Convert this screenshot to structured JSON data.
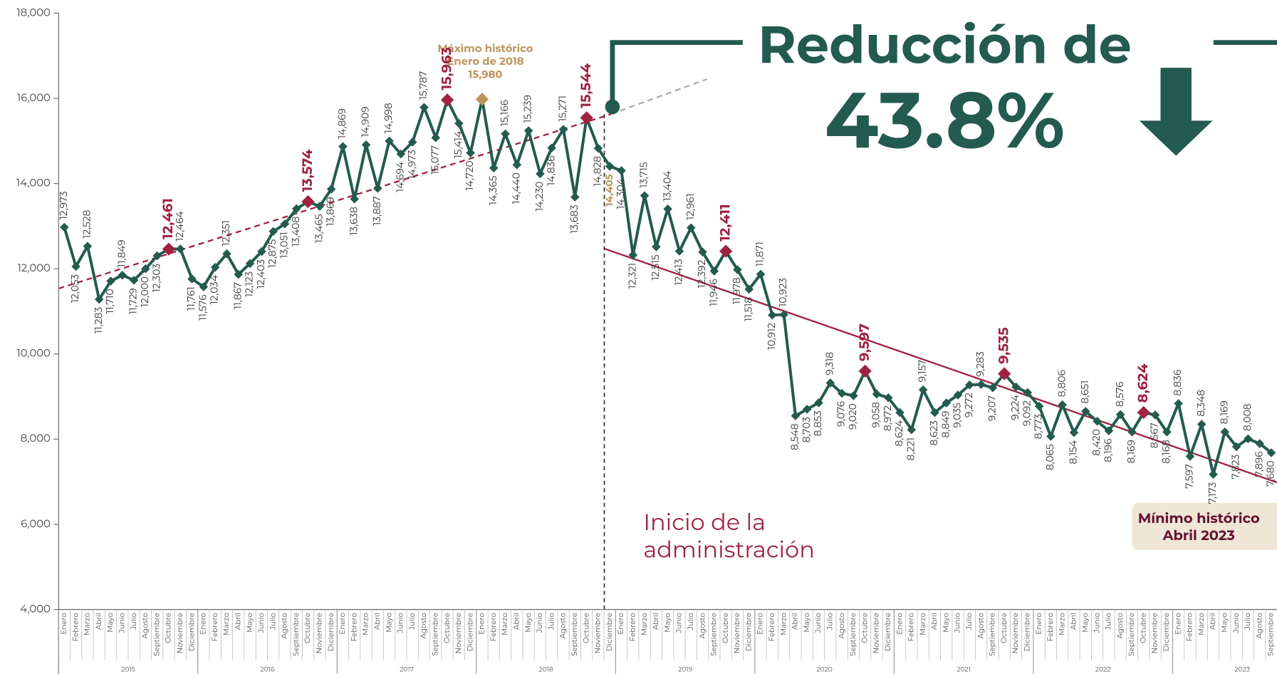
{
  "chart_data": {
    "type": "line",
    "categories": [
      "Enero",
      "Febrero",
      "Marzo",
      "Abril",
      "Mayo",
      "Junio",
      "Julio",
      "Agosto",
      "Septiembre",
      "Octubre",
      "Noviembre",
      "Diciembre",
      "Enero",
      "Febrero",
      "Marzo",
      "Abril",
      "Mayo",
      "Junio",
      "Julio",
      "Agosto",
      "Septiembre",
      "Octubre",
      "Noviembre",
      "Diciembre",
      "Enero",
      "Febrero",
      "Marzo",
      "Abril",
      "Mayo",
      "Junio",
      "Julio",
      "Agosto",
      "Septiembre",
      "Octubre",
      "Noviembre",
      "Diciembre",
      "Enero",
      "Febrero",
      "Marzo",
      "Abril",
      "Mayo",
      "Junio",
      "Julio",
      "Agosto",
      "Septiembre",
      "Octubre",
      "Noviembre",
      "Diciembre",
      "Enero",
      "Febrero",
      "Marzo",
      "Abril",
      "Mayo",
      "Junio",
      "Julio",
      "Agosto",
      "Septiembre",
      "Octubre",
      "Noviembre",
      "Diciembre",
      "Enero",
      "Febrero",
      "Marzo",
      "Abril",
      "Mayo",
      "Junio",
      "Julio",
      "Agosto",
      "Septiembre",
      "Octubre",
      "Noviembre",
      "Diciembre",
      "Enero",
      "Febrero",
      "Marzo",
      "Abril",
      "Mayo",
      "Junio",
      "Julio",
      "Agosto",
      "Septiembre",
      "Octubre",
      "Noviembre",
      "Diciembre",
      "Enero",
      "Febrero",
      "Marzo",
      "Abril",
      "Mayo",
      "Junio",
      "Julio",
      "Agosto",
      "Septiembre",
      "Octubre",
      "Noviembre",
      "Diciembre",
      "Enero",
      "Febrero",
      "Marzo",
      "Abril",
      "Mayo",
      "Junio",
      "Julio",
      "Agosto",
      "Septiembre"
    ],
    "years": [
      "2015",
      "2016",
      "2017",
      "2018",
      "2019",
      "2020",
      "2021",
      "2022",
      "2023"
    ],
    "values": [
      12973,
      12053,
      12528,
      11283,
      11710,
      11849,
      11729,
      12000,
      12303,
      12461,
      12464,
      11761,
      11576,
      12034,
      12351,
      11867,
      12123,
      12403,
      12875,
      13051,
      13408,
      13574,
      13465,
      13869,
      14869,
      13638,
      14909,
      13887,
      14998,
      14694,
      14973,
      15787,
      15077,
      15963,
      15414,
      14720,
      15980,
      14365,
      15166,
      14440,
      15239,
      14230,
      14836,
      15271,
      13683,
      15544,
      14828,
      14405,
      14304,
      12321,
      13715,
      12515,
      13404,
      12413,
      12961,
      12392,
      11946,
      12411,
      11978,
      11518,
      11871,
      10912,
      10923,
      8548,
      8703,
      8853,
      9318,
      9076,
      9020,
      9597,
      9058,
      8972,
      8624,
      8221,
      9157,
      8623,
      8849,
      9035,
      9272,
      9283,
      9207,
      9535,
      9224,
      9092,
      8773,
      8065,
      8806,
      8154,
      8651,
      8420,
      8196,
      8576,
      8169,
      8624,
      8567,
      8168,
      8836,
      7597,
      8348,
      7173,
      8169,
      7823,
      8008,
      7896,
      7680
    ],
    "value_labels": [
      "12,973",
      "12,053",
      "12,528",
      "11,283",
      "11,710",
      "11,849",
      "11,729",
      "12,000",
      "12,303",
      "12,461",
      "12,464",
      "11,761",
      "11,576",
      "12,034",
      "12,351",
      "11,867",
      "12,123",
      "12,403",
      "12,875",
      "13,051",
      "13,408",
      "13,574",
      "13,465",
      "13,869",
      "14,869",
      "13,638",
      "14,909",
      "13,887",
      "14,998",
      "14,694",
      "14,973",
      "15,787",
      "15,077",
      "15,963",
      "15,414",
      "14,720",
      "15,980",
      "14,365",
      "15,166",
      "14,440",
      "15,239",
      "14,230",
      "14,836",
      "15,271",
      "13,683",
      "15,544",
      "14,828",
      "14,405",
      "14,304",
      "12,321",
      "13,715",
      "12,515",
      "13,404",
      "12,413",
      "12,961",
      "12,392",
      "11,946",
      "12,411",
      "11,978",
      "11,518",
      "11,871",
      "10,912",
      "10,923",
      "8,548",
      "8,703",
      "8,853",
      "9,318",
      "9,076",
      "9,020",
      "9,597",
      "9,058",
      "8,972",
      "8,624",
      "8,221",
      "9,157",
      "8,623",
      "8,849",
      "9,035",
      "9,272",
      "9,283",
      "9,207",
      "9,535",
      "9,224",
      "9,092",
      "8,773",
      "8,065",
      "8,806",
      "8,154",
      "8,651",
      "8,420",
      "8,196",
      "8,576",
      "8,169",
      "8,624",
      "8,567",
      "8,168",
      "8,836",
      "7,597",
      "8,348",
      "7,173",
      "8,169",
      "7,823",
      "8,008",
      "7,896",
      "7,680"
    ],
    "color": "#235b4e",
    "highlight_color": "#9f2241",
    "max_color": "#bc955c",
    "highlight_indices": [
      9,
      21,
      33,
      45,
      57,
      69,
      81,
      93
    ],
    "max_index": 36,
    "ylim": [
      4000,
      18000
    ],
    "yticks": [
      {
        "value": 4000,
        "label": "4,000"
      },
      {
        "value": 6000,
        "label": "6,000"
      },
      {
        "value": 8000,
        "label": "8,000"
      },
      {
        "value": 10000,
        "label": "10,000"
      },
      {
        "value": 12000,
        "label": "12,000"
      },
      {
        "value": 14000,
        "label": "14,000"
      },
      {
        "value": 16000,
        "label": "16,000"
      },
      {
        "value": 18000,
        "label": "18,000"
      }
    ],
    "annotations": {
      "reduction_title": "Reducción de",
      "reduction_value": "43.8%",
      "start": [
        "Inicio de la",
        "administración"
      ],
      "max": [
        "Máximo histórico",
        "Enero de 2018"
      ],
      "min": [
        "Mínimo histórico",
        "Abril 2023"
      ]
    }
  }
}
